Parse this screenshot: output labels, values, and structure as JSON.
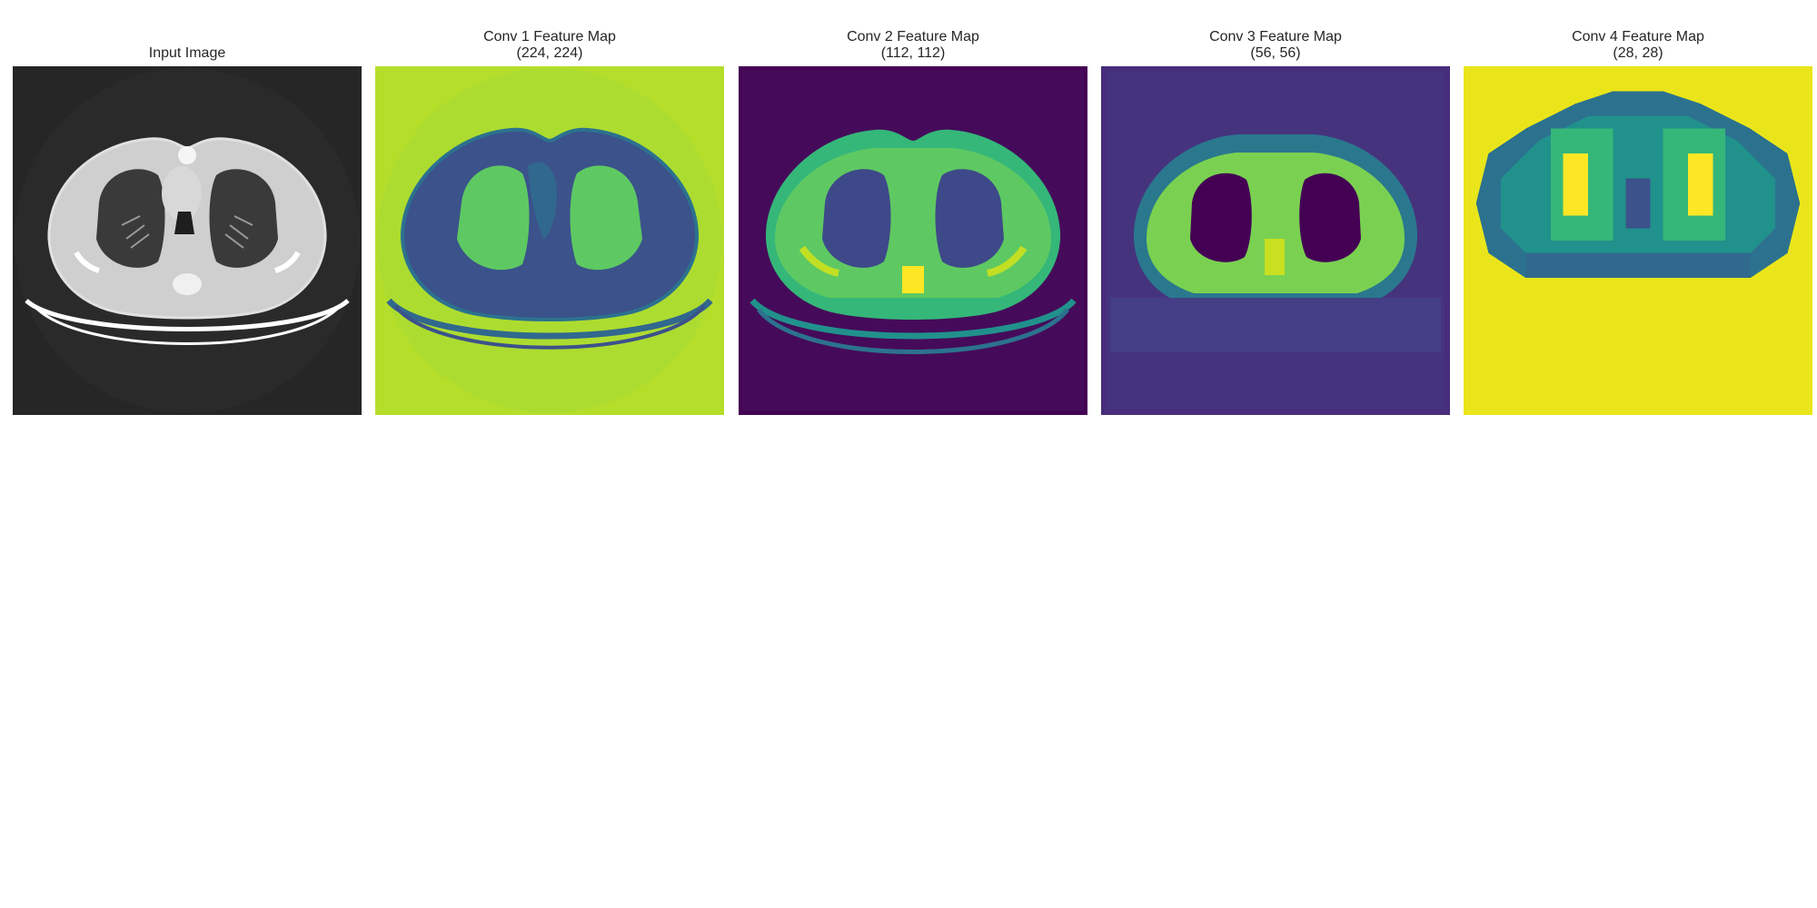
{
  "panels": [
    {
      "title": "Input Image",
      "subtitle": "",
      "colormap": "gray"
    },
    {
      "title": "Conv 1 Feature Map",
      "subtitle": "(224, 224)",
      "colormap": "viridis"
    },
    {
      "title": "Conv 2 Feature Map",
      "subtitle": "(112, 112)",
      "colormap": "viridis"
    },
    {
      "title": "Conv 3 Feature Map",
      "subtitle": "(56, 56)",
      "colormap": "viridis"
    },
    {
      "title": "Conv 4 Feature Map",
      "subtitle": "(28, 28)",
      "colormap": "viridis"
    }
  ],
  "colors": {
    "ct_background": "#262626",
    "ct_soft_tissue": "#cfcfcf",
    "ct_lung": "#3a3a3a",
    "ct_bone": "#ffffff",
    "viridis_dark": "#440154",
    "viridis_blue": "#3b528b",
    "viridis_teal": "#21918c",
    "viridis_green": "#5ec962",
    "viridis_yellow": "#fde725"
  }
}
